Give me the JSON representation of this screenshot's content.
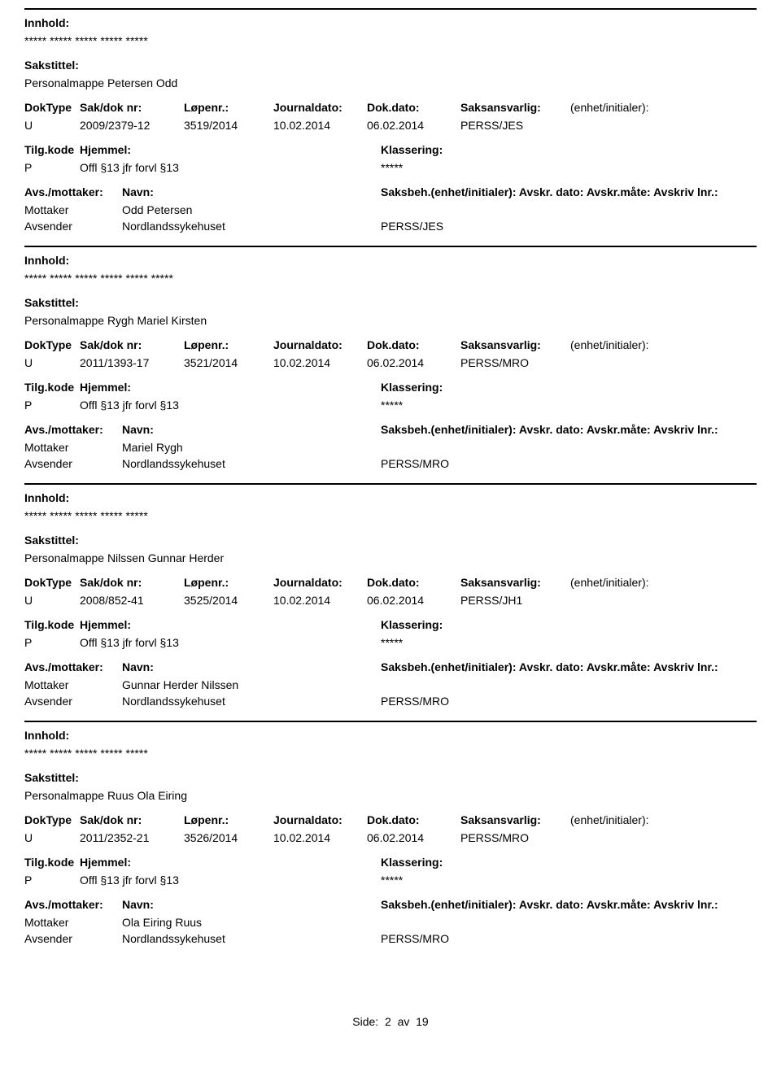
{
  "labels": {
    "innhold": "Innhold:",
    "sakstittel": "Sakstittel:",
    "doktype": "DokType",
    "sakdok": "Sak/dok nr:",
    "lopenr": "Løpenr.:",
    "journaldato": "Journaldato:",
    "dokdato": "Dok.dato:",
    "saksansvarlig": "Saksansvarlig:",
    "enhetinitialer": "(enhet/initialer):",
    "tilgkode": "Tilg.kode",
    "hjemmel": "Hjemmel:",
    "klassering": "Klassering:",
    "avsmottaker": "Avs./mottaker:",
    "navn": "Navn:",
    "saksbehline": "Saksbeh.(enhet/initialer): Avskr. dato: Avskr.måte: Avskriv lnr.:",
    "mottaker": "Mottaker",
    "avsender": "Avsender"
  },
  "records": [
    {
      "innhold": "***** ***** ***** ***** *****",
      "sakstittel": "Personalmappe Petersen Odd",
      "doktype": "U",
      "sakdok": "2009/2379-12",
      "lopenr": "3519/2014",
      "journaldato": "10.02.2014",
      "dokdato": "06.02.2014",
      "saksansvarlig": "PERSS/JES",
      "tilgkode": "P",
      "hjemmel": "Offl §13 jfr forvl §13",
      "klassering": "*****",
      "mottaker_navn": "Odd Petersen",
      "avsender_navn": "Nordlandssykehuset",
      "avsender_code": "PERSS/JES"
    },
    {
      "innhold": "***** ***** ***** ***** ***** *****",
      "sakstittel": "Personalmappe Rygh Mariel Kirsten",
      "doktype": "U",
      "sakdok": "2011/1393-17",
      "lopenr": "3521/2014",
      "journaldato": "10.02.2014",
      "dokdato": "06.02.2014",
      "saksansvarlig": "PERSS/MRO",
      "tilgkode": "P",
      "hjemmel": "Offl §13 jfr forvl §13",
      "klassering": "*****",
      "mottaker_navn": "Mariel Rygh",
      "avsender_navn": "Nordlandssykehuset",
      "avsender_code": "PERSS/MRO"
    },
    {
      "innhold": "***** ***** ***** ***** *****",
      "sakstittel": "Personalmappe Nilssen Gunnar Herder",
      "doktype": "U",
      "sakdok": "2008/852-41",
      "lopenr": "3525/2014",
      "journaldato": "10.02.2014",
      "dokdato": "06.02.2014",
      "saksansvarlig": "PERSS/JH1",
      "tilgkode": "P",
      "hjemmel": "Offl §13 jfr forvl §13",
      "klassering": "*****",
      "mottaker_navn": "Gunnar Herder Nilssen",
      "avsender_navn": "Nordlandssykehuset",
      "avsender_code": "PERSS/MRO"
    },
    {
      "innhold": "***** ***** ***** ***** *****",
      "sakstittel": "Personalmappe Ruus Ola Eiring",
      "doktype": "U",
      "sakdok": "2011/2352-21",
      "lopenr": "3526/2014",
      "journaldato": "10.02.2014",
      "dokdato": "06.02.2014",
      "saksansvarlig": "PERSS/MRO",
      "tilgkode": "P",
      "hjemmel": "Offl §13 jfr forvl §13",
      "klassering": "*****",
      "mottaker_navn": "Ola Eiring Ruus",
      "avsender_navn": "Nordlandssykehuset",
      "avsender_code": "PERSS/MRO"
    }
  ],
  "footer": {
    "side_label": "Side:",
    "page_current": "2",
    "av_label": "av",
    "page_total": "19"
  }
}
